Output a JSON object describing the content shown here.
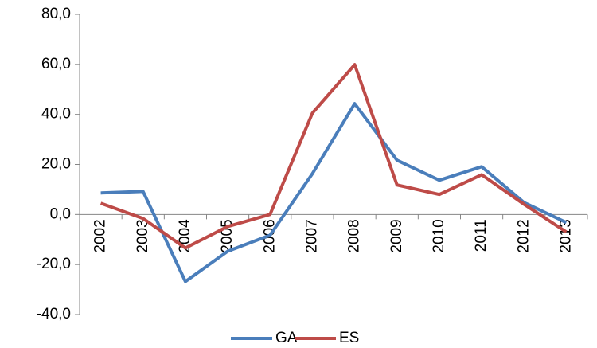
{
  "chart_data": {
    "type": "line",
    "categories": [
      "2002",
      "2003",
      "2004",
      "2005",
      "2006",
      "2007",
      "2008",
      "2009",
      "2010",
      "2011",
      "2012",
      "2013"
    ],
    "series": [
      {
        "name": "GA",
        "color": "#4a7ebb",
        "values": [
          8.6,
          9.2,
          -26.8,
          -14.7,
          -8.3,
          16.3,
          44.3,
          21.7,
          13.7,
          19.1,
          4.8,
          -3.2
        ]
      },
      {
        "name": "ES",
        "color": "#be4b48",
        "values": [
          4.5,
          -1.6,
          -13.4,
          -4.8,
          0.0,
          40.5,
          59.9,
          11.8,
          8.0,
          15.9,
          4.1,
          -7.0
        ]
      }
    ],
    "ylim": [
      -40,
      80
    ],
    "yticks": [
      {
        "value": -40,
        "label": "-40,0"
      },
      {
        "value": -20,
        "label": "-20,0"
      },
      {
        "value": 0,
        "label": "0,0"
      },
      {
        "value": 20,
        "label": "20,0"
      },
      {
        "value": 40,
        "label": "40,0"
      },
      {
        "value": 60,
        "label": "60,0"
      },
      {
        "value": 80,
        "label": "80,0"
      }
    ],
    "legend": "bottom"
  }
}
